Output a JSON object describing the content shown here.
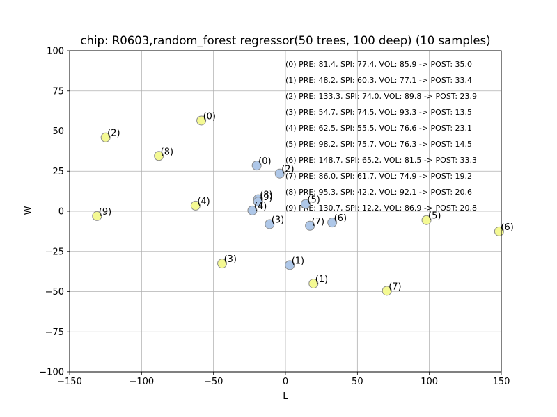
{
  "chart_data": {
    "type": "scatter",
    "title": "chip: R0603,random_forest regressor(50 trees, 100 deep) (10 samples)",
    "xlabel": "L",
    "ylabel": "W",
    "xlim": [
      -150,
      150
    ],
    "ylim": [
      -100,
      100
    ],
    "xticks": [
      -150,
      -100,
      -50,
      0,
      50,
      100,
      150
    ],
    "yticks": [
      -100,
      -75,
      -50,
      -25,
      0,
      25,
      50,
      75,
      100
    ],
    "xtick_labels": [
      "−150",
      "−100",
      "−50",
      "0",
      "50",
      "100",
      "150"
    ],
    "ytick_labels": [
      "−100",
      "−75",
      "−50",
      "−25",
      "0",
      "25",
      "50",
      "75",
      "100"
    ],
    "grid": true,
    "series": [
      {
        "color": "#aec7e8",
        "points": [
          {
            "label": "(0)",
            "x": -20,
            "y": 28.5
          },
          {
            "label": "(1)",
            "x": 3,
            "y": -33.5
          },
          {
            "label": "(2)",
            "x": -4,
            "y": 23.5
          },
          {
            "label": "(3)",
            "x": -11,
            "y": -8
          },
          {
            "label": "(4)",
            "x": -23,
            "y": 0.5
          },
          {
            "label": "(5)",
            "x": 14,
            "y": 4.5
          },
          {
            "label": "(6)",
            "x": 32.5,
            "y": -7
          },
          {
            "label": "(7)",
            "x": 17,
            "y": -9
          },
          {
            "label": "(8)",
            "x": -19,
            "y": 7.5
          },
          {
            "label": "(9)",
            "x": -19,
            "y": 6
          }
        ]
      },
      {
        "color": "#f4f993",
        "points": [
          {
            "label": "(0)",
            "x": -58.5,
            "y": 56.5
          },
          {
            "label": "(1)",
            "x": 19.5,
            "y": -45
          },
          {
            "label": "(2)",
            "x": -125,
            "y": 46
          },
          {
            "label": "(3)",
            "x": -44,
            "y": -32.5
          },
          {
            "label": "(4)",
            "x": -62.5,
            "y": 3.5
          },
          {
            "label": "(5)",
            "x": 98,
            "y": -5.5
          },
          {
            "label": "(6)",
            "x": 148.5,
            "y": -12.5
          },
          {
            "label": "(7)",
            "x": 70.5,
            "y": -49.5
          },
          {
            "label": "(8)",
            "x": -88,
            "y": 34.5
          },
          {
            "label": "(9)",
            "x": -131,
            "y": -3
          }
        ]
      }
    ],
    "annotations": [
      "(0) PRE: 81.4, SPI: 77.4, VOL: 85.9 -> POST: 35.0",
      "(1) PRE: 48.2, SPI: 60.3, VOL: 77.1 -> POST: 33.4",
      "(2) PRE: 133.3, SPI: 74.0, VOL: 89.8 -> POST: 23.9",
      "(3) PRE: 54.7, SPI: 74.5, VOL: 93.3 -> POST: 13.5",
      "(4) PRE: 62.5, SPI: 55.5, VOL: 76.6 -> POST: 23.1",
      "(5) PRE: 98.2, SPI: 75.7, VOL: 76.3 -> POST: 14.5",
      "(6) PRE: 148.7, SPI: 65.2, VOL: 81.5 -> POST: 33.3",
      "(7) PRE: 86.0, SPI: 61.7, VOL: 74.9 -> POST: 19.2",
      "(8) PRE: 95.3, SPI: 42.2, VOL: 92.1 -> POST: 20.6",
      "(9) PRE: 130.7, SPI: 12.2, VOL: 86.9 -> POST: 20.8"
    ]
  }
}
